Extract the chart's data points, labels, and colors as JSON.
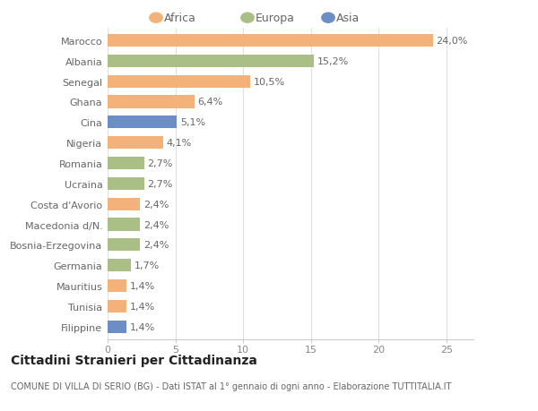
{
  "categories": [
    "Marocco",
    "Albania",
    "Senegal",
    "Ghana",
    "Cina",
    "Nigeria",
    "Romania",
    "Ucraina",
    "Costa d'Avorio",
    "Macedonia d/N.",
    "Bosnia-Erzegovina",
    "Germania",
    "Mauritius",
    "Tunisia",
    "Filippine"
  ],
  "values": [
    24.0,
    15.2,
    10.5,
    6.4,
    5.1,
    4.1,
    2.7,
    2.7,
    2.4,
    2.4,
    2.4,
    1.7,
    1.4,
    1.4,
    1.4
  ],
  "labels": [
    "24,0%",
    "15,2%",
    "10,5%",
    "6,4%",
    "5,1%",
    "4,1%",
    "2,7%",
    "2,7%",
    "2,4%",
    "2,4%",
    "2,4%",
    "1,7%",
    "1,4%",
    "1,4%",
    "1,4%"
  ],
  "continents": [
    "Africa",
    "Europa",
    "Africa",
    "Africa",
    "Asia",
    "Africa",
    "Europa",
    "Europa",
    "Africa",
    "Europa",
    "Europa",
    "Europa",
    "Africa",
    "Africa",
    "Asia"
  ],
  "colors": {
    "Africa": "#F2B27A",
    "Europa": "#AABF85",
    "Asia": "#6B8EC4"
  },
  "legend_labels": [
    "Africa",
    "Europa",
    "Asia"
  ],
  "legend_colors": [
    "#F2B27A",
    "#AABF85",
    "#6B8EC4"
  ],
  "xlim": [
    0,
    27
  ],
  "xticks": [
    0,
    5,
    10,
    15,
    20,
    25
  ],
  "title": "Cittadini Stranieri per Cittadinanza",
  "subtitle": "COMUNE DI VILLA DI SERIO (BG) - Dati ISTAT al 1° gennaio di ogni anno - Elaborazione TUTTITALIA.IT",
  "background_color": "#ffffff",
  "bar_height": 0.62,
  "label_fontsize": 8.0,
  "axis_label_fontsize": 8.0,
  "title_fontsize": 10,
  "subtitle_fontsize": 7.0
}
